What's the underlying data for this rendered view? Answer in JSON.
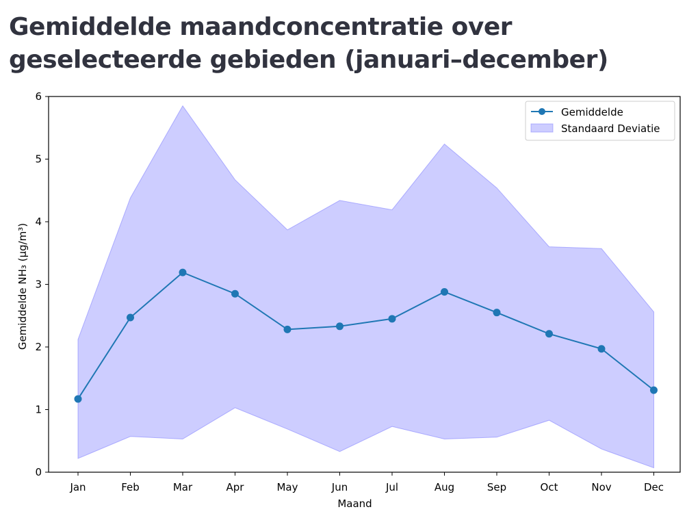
{
  "header": {
    "title": "Gemiddelde maandconcentratie over geselecteerde gebieden (januari–december)"
  },
  "chart_data": {
    "type": "line",
    "title": "",
    "xlabel": "Maand",
    "ylabel": "Gemiddelde NH₃ (µg/m³)",
    "categories": [
      "Jan",
      "Feb",
      "Mar",
      "Apr",
      "May",
      "Jun",
      "Jul",
      "Aug",
      "Sep",
      "Oct",
      "Nov",
      "Dec"
    ],
    "ylim": [
      0,
      6
    ],
    "yticks": [
      0,
      1,
      2,
      3,
      4,
      5,
      6
    ],
    "series": [
      {
        "name": "Gemiddelde",
        "values": [
          1.17,
          2.47,
          3.19,
          2.85,
          2.28,
          2.33,
          2.45,
          2.88,
          2.55,
          2.21,
          1.97,
          1.31
        ],
        "color": "#1f77b4"
      }
    ],
    "band": {
      "name": "Standaard Deviatie",
      "upper": [
        2.12,
        4.38,
        5.85,
        4.67,
        3.87,
        4.34,
        4.19,
        5.24,
        4.54,
        3.6,
        3.57,
        2.56
      ],
      "lower": [
        0.22,
        0.57,
        0.53,
        1.03,
        0.69,
        0.33,
        0.73,
        0.53,
        0.56,
        0.83,
        0.37,
        0.07
      ],
      "color": "#7b7bff"
    },
    "legend_position": "top-right",
    "grid": false
  }
}
